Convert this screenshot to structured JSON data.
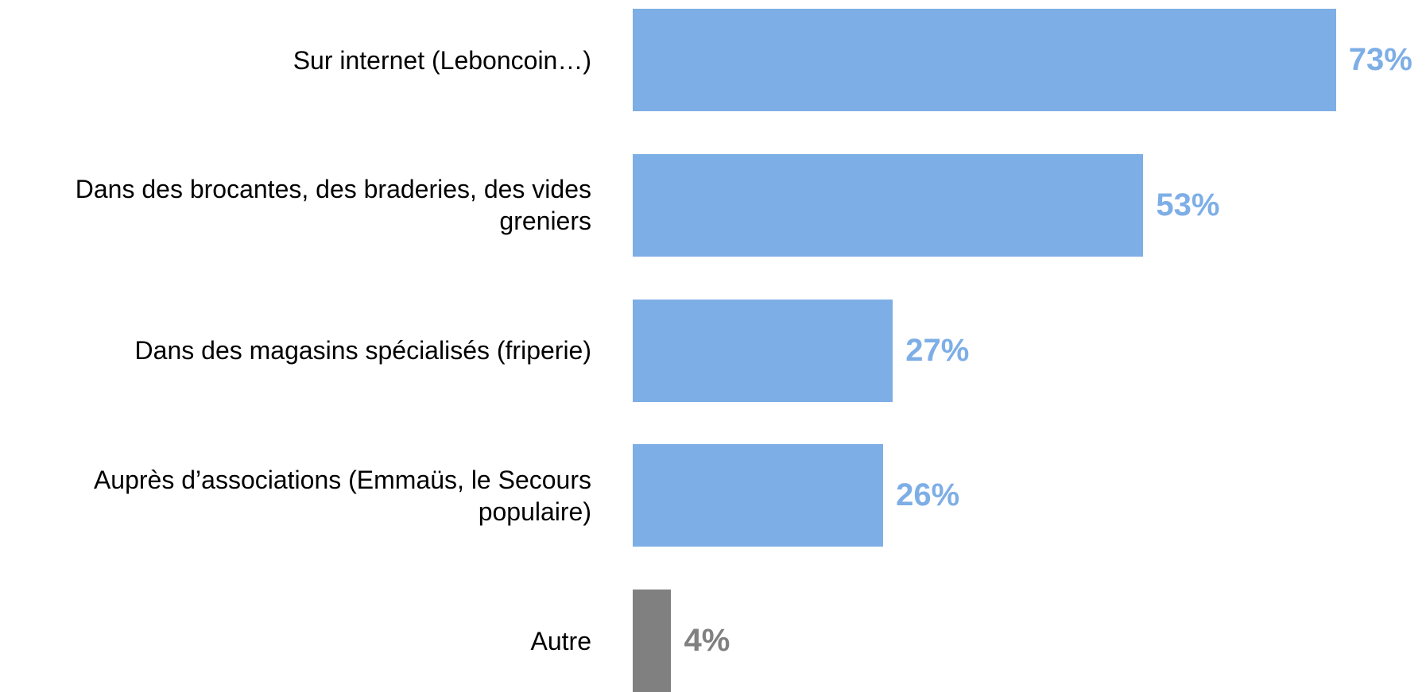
{
  "chart_data": {
    "type": "bar",
    "orientation": "horizontal",
    "categories": [
      "Sur internet (Leboncoin…)",
      "Dans des brocantes, des braderies, des vides greniers",
      "Dans des magasins spécialisés (friperie)",
      "Auprès d’associations (Emmaüs, le Secours populaire)",
      "Autre"
    ],
    "values": [
      73,
      53,
      27,
      26,
      4
    ],
    "value_labels": [
      "73%",
      "53%",
      "27%",
      "26%",
      "4%"
    ],
    "colors": [
      "#7eaee6",
      "#7eaee6",
      "#7eaee6",
      "#7eaee6",
      "#808080"
    ]
  }
}
